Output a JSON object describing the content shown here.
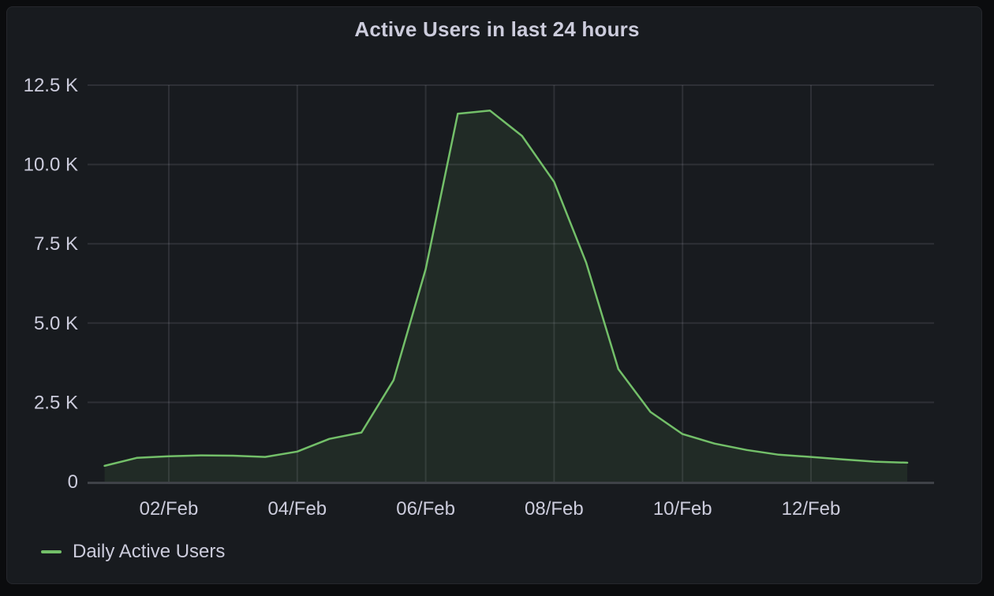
{
  "panel": {
    "title": "Active Users in last 24 hours",
    "legend": {
      "label": "Daily Active Users"
    }
  },
  "colors": {
    "background": "#0b0c0e",
    "panel_background": "#181b1f",
    "panel_border": "#25272c",
    "text": "#ccccdc",
    "grid": "rgba(204,204,220,0.12)",
    "axis_line": "rgba(204,204,220,0.22)",
    "series_line": "#73bf69",
    "series_fill": "rgba(115,191,105,0.10)"
  },
  "chart_data": {
    "type": "area",
    "title": "Active Users in last 24 hours",
    "grid": true,
    "legend_position": "bottom-left",
    "series": [
      {
        "name": "Daily Active Users",
        "color": "#73bf69",
        "x_days_since_feb1": [
          0,
          0.5,
          1,
          1.5,
          2,
          2.5,
          3,
          3.5,
          4,
          4.5,
          5,
          5.5,
          6,
          6.5,
          7,
          7.5,
          8,
          8.5,
          9,
          9.5,
          10,
          10.5,
          11,
          11.5,
          12,
          12.5
        ],
        "values": [
          500,
          750,
          800,
          830,
          820,
          780,
          950,
          1350,
          1550,
          3200,
          6700,
          11600,
          11700,
          10900,
          9450,
          6900,
          3550,
          2200,
          1500,
          1200,
          1000,
          850,
          780,
          700,
          630,
          600
        ]
      }
    ],
    "x_axis": {
      "unit": "date (DD/MMM)",
      "tick_labels": [
        "02/Feb",
        "04/Feb",
        "06/Feb",
        "08/Feb",
        "10/Feb",
        "12/Feb"
      ],
      "tick_days_since_feb1": [
        1,
        3,
        5,
        7,
        9,
        11
      ],
      "range_days": [
        -0.26,
        12.92
      ]
    },
    "y_axis": {
      "range": [
        0,
        12500
      ],
      "ticks": [
        {
          "value": 0,
          "label": "0"
        },
        {
          "value": 2500,
          "label": "2.5 K"
        },
        {
          "value": 5000,
          "label": "5.0 K"
        },
        {
          "value": 7500,
          "label": "7.5 K"
        },
        {
          "value": 10000,
          "label": "10.0 K"
        },
        {
          "value": 12500,
          "label": "12.5 K"
        }
      ]
    }
  }
}
